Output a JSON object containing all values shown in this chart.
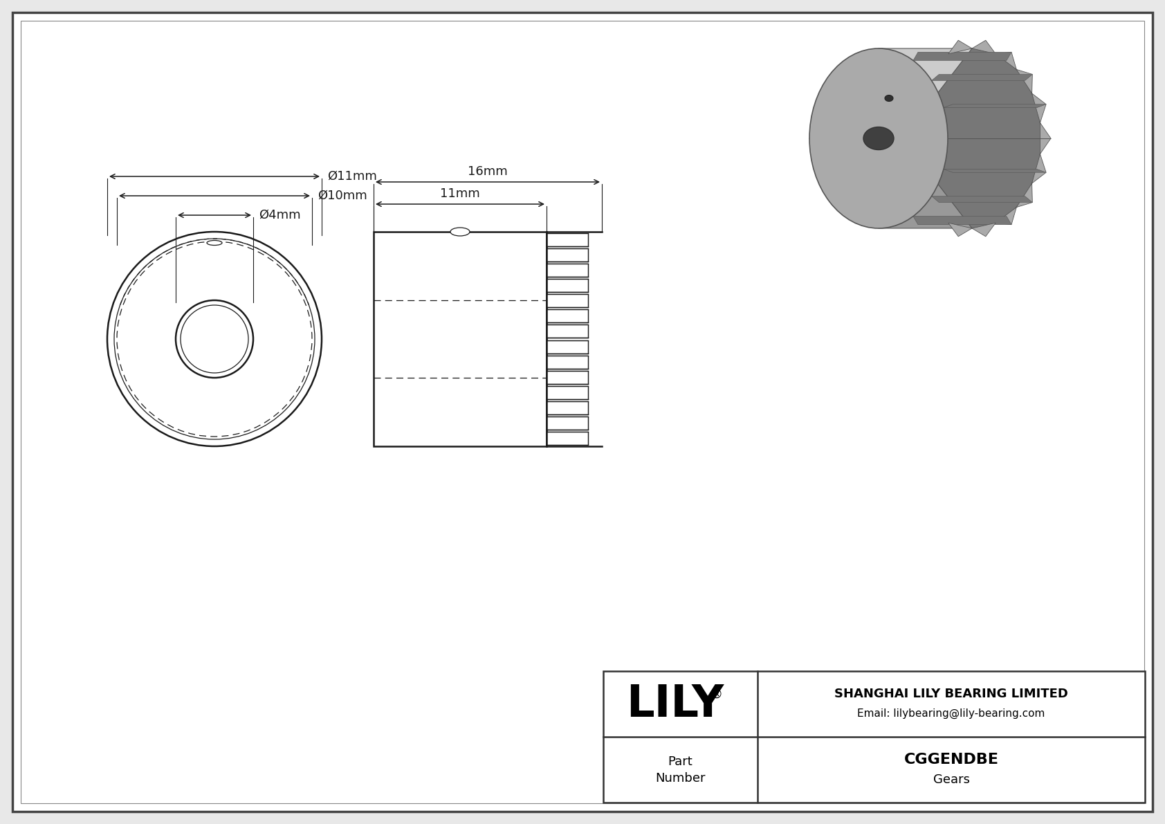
{
  "bg_color": "#ffffff",
  "border_color": "#333333",
  "line_color": "#1a1a1a",
  "company": "SHANGHAI LILY BEARING LIMITED",
  "email": "Email: lilybearing@lily-bearing.com",
  "part_number": "CGGENDBE",
  "part_type": "Gears",
  "gear_color": "#aaaaaa",
  "gear_dark": "#777777",
  "gear_light": "#cccccc",
  "gear_mid": "#999999"
}
